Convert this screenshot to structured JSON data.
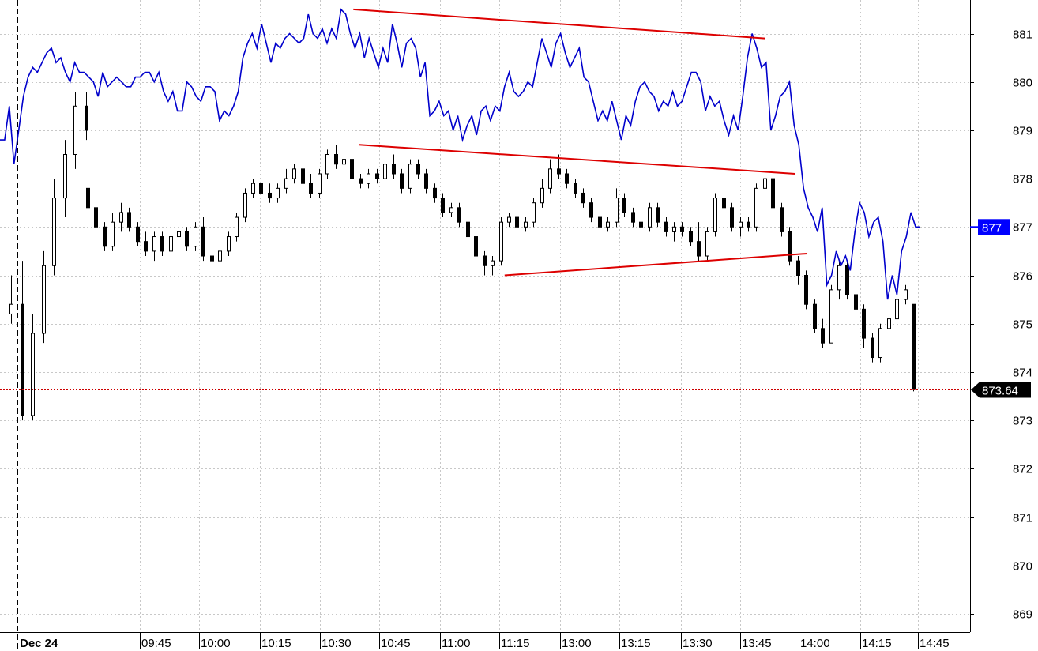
{
  "chart_data": {
    "type": "candlestick",
    "y_axis": {
      "min": 868.5,
      "max": 881.6,
      "ticks": [
        869,
        870,
        871,
        872,
        873,
        874,
        875,
        876,
        877,
        878,
        879,
        880,
        881
      ],
      "side": "right",
      "grid": true
    },
    "x_axis": {
      "date_label": "Dec 24",
      "time_labels": [
        "09:45",
        "10:00",
        "10:15",
        "10:30",
        "10:45",
        "11:00",
        "11:15",
        "13:00",
        "13:15",
        "13:30",
        "13:45",
        "14:00",
        "14:15",
        "14:45"
      ],
      "grid": true
    },
    "last_price": {
      "value": 873.64,
      "label": "873.64",
      "color": "#000000"
    },
    "line_marker": {
      "value": 877,
      "label": "877",
      "color": "#0000ff"
    },
    "series": [
      {
        "kind": "candles",
        "color": "#000000",
        "candles": [
          [
            875.2,
            876.0,
            875.0,
            875.4
          ],
          [
            875.4,
            876.3,
            873.0,
            873.1
          ],
          [
            873.1,
            875.2,
            873.0,
            874.8
          ],
          [
            874.8,
            876.5,
            874.6,
            876.2
          ],
          [
            876.2,
            878.0,
            876.0,
            877.6
          ],
          [
            877.6,
            878.8,
            877.2,
            878.5
          ],
          [
            878.5,
            879.8,
            878.2,
            879.5
          ],
          [
            879.5,
            879.8,
            878.8,
            879.0
          ],
          [
            877.8,
            877.9,
            877.3,
            877.4
          ],
          [
            877.4,
            877.6,
            876.8,
            877.0
          ],
          [
            877.0,
            877.1,
            876.5,
            876.6
          ],
          [
            876.6,
            877.3,
            876.5,
            877.1
          ],
          [
            877.1,
            877.5,
            876.9,
            877.3
          ],
          [
            877.3,
            877.4,
            876.9,
            877.0
          ],
          [
            877.0,
            877.1,
            876.6,
            876.7
          ],
          [
            876.7,
            876.9,
            876.4,
            876.5
          ],
          [
            876.5,
            876.9,
            876.3,
            876.8
          ],
          [
            876.8,
            876.9,
            876.4,
            876.5
          ],
          [
            876.5,
            876.9,
            876.4,
            876.8
          ],
          [
            876.8,
            877.0,
            876.6,
            876.9
          ],
          [
            876.9,
            877.0,
            876.5,
            876.6
          ],
          [
            876.6,
            877.1,
            876.5,
            877.0
          ],
          [
            877.0,
            877.2,
            876.3,
            876.4
          ],
          [
            876.4,
            876.6,
            876.1,
            876.3
          ],
          [
            876.3,
            876.6,
            876.2,
            876.5
          ],
          [
            876.5,
            876.9,
            876.4,
            876.8
          ],
          [
            876.8,
            877.3,
            876.7,
            877.2
          ],
          [
            877.2,
            877.8,
            877.1,
            877.7
          ],
          [
            877.7,
            878.0,
            877.6,
            877.9
          ],
          [
            877.9,
            878.0,
            877.6,
            877.7
          ],
          [
            877.7,
            877.9,
            877.5,
            877.6
          ],
          [
            877.6,
            877.9,
            877.5,
            877.8
          ],
          [
            877.8,
            878.2,
            877.7,
            878.0
          ],
          [
            878.0,
            878.3,
            877.9,
            878.2
          ],
          [
            878.2,
            878.3,
            877.8,
            877.9
          ],
          [
            877.9,
            878.1,
            877.6,
            877.7
          ],
          [
            877.7,
            878.2,
            877.6,
            878.1
          ],
          [
            878.1,
            878.6,
            878.0,
            878.5
          ],
          [
            878.5,
            878.7,
            878.2,
            878.3
          ],
          [
            878.3,
            878.5,
            878.1,
            878.4
          ],
          [
            878.4,
            878.5,
            877.9,
            878.0
          ],
          [
            878.0,
            878.1,
            877.8,
            877.9
          ],
          [
            877.9,
            878.2,
            877.8,
            878.1
          ],
          [
            878.1,
            878.2,
            877.9,
            878.0
          ],
          [
            878.0,
            878.4,
            877.9,
            878.3
          ],
          [
            878.3,
            878.5,
            878.0,
            878.1
          ],
          [
            878.1,
            878.2,
            877.7,
            877.8
          ],
          [
            877.8,
            878.4,
            877.7,
            878.3
          ],
          [
            878.3,
            878.4,
            878.0,
            878.1
          ],
          [
            878.1,
            878.2,
            877.7,
            877.8
          ],
          [
            877.8,
            877.9,
            877.5,
            877.6
          ],
          [
            877.6,
            877.7,
            877.2,
            877.3
          ],
          [
            877.3,
            877.5,
            877.2,
            877.4
          ],
          [
            877.4,
            877.5,
            877.0,
            877.1
          ],
          [
            877.1,
            877.2,
            876.7,
            876.8
          ],
          [
            876.8,
            876.9,
            876.3,
            876.4
          ],
          [
            876.4,
            876.5,
            876.0,
            876.2
          ],
          [
            876.2,
            876.4,
            876.0,
            876.3
          ],
          [
            876.3,
            877.2,
            876.2,
            877.1
          ],
          [
            877.1,
            877.3,
            877.0,
            877.2
          ],
          [
            877.2,
            877.3,
            876.9,
            877.0
          ],
          [
            877.0,
            877.2,
            876.9,
            877.1
          ],
          [
            877.1,
            877.6,
            877.0,
            877.5
          ],
          [
            877.5,
            878.0,
            877.4,
            877.8
          ],
          [
            877.8,
            878.4,
            877.7,
            878.2
          ],
          [
            878.2,
            878.5,
            878.0,
            878.1
          ],
          [
            878.1,
            878.2,
            877.8,
            877.9
          ],
          [
            877.9,
            878.0,
            877.6,
            877.7
          ],
          [
            877.7,
            877.8,
            877.4,
            877.5
          ],
          [
            877.5,
            877.6,
            877.1,
            877.2
          ],
          [
            877.2,
            877.3,
            876.9,
            877.0
          ],
          [
            877.0,
            877.2,
            876.9,
            877.1
          ],
          [
            877.1,
            877.8,
            877.0,
            877.6
          ],
          [
            877.6,
            877.7,
            877.2,
            877.3
          ],
          [
            877.3,
            877.4,
            877.0,
            877.1
          ],
          [
            877.1,
            877.2,
            876.9,
            877.0
          ],
          [
            877.0,
            877.5,
            876.9,
            877.4
          ],
          [
            877.4,
            877.5,
            877.0,
            877.1
          ],
          [
            877.1,
            877.2,
            876.8,
            876.9
          ],
          [
            876.9,
            877.1,
            876.7,
            877.0
          ],
          [
            877.0,
            877.1,
            876.8,
            876.9
          ],
          [
            876.9,
            877.0,
            876.6,
            876.7
          ],
          [
            876.7,
            877.1,
            876.3,
            876.4
          ],
          [
            876.4,
            877.0,
            876.3,
            876.9
          ],
          [
            876.9,
            877.7,
            876.8,
            877.6
          ],
          [
            877.6,
            877.8,
            877.3,
            877.4
          ],
          [
            877.4,
            877.5,
            876.9,
            877.0
          ],
          [
            877.0,
            877.2,
            876.8,
            877.1
          ],
          [
            877.1,
            877.2,
            876.9,
            877.0
          ],
          [
            877.0,
            877.9,
            876.9,
            877.8
          ],
          [
            877.8,
            878.1,
            877.7,
            878.0
          ],
          [
            878.0,
            878.1,
            877.3,
            877.4
          ],
          [
            877.4,
            877.5,
            876.8,
            876.9
          ],
          [
            876.9,
            877.0,
            876.2,
            876.3
          ],
          [
            876.3,
            876.4,
            875.8,
            876.0
          ],
          [
            876.0,
            876.1,
            875.3,
            875.4
          ],
          [
            875.4,
            875.5,
            874.8,
            874.9
          ],
          [
            874.9,
            875.1,
            874.5,
            874.6
          ],
          [
            874.6,
            875.8,
            874.6,
            875.7
          ],
          [
            875.7,
            876.3,
            875.5,
            876.2
          ],
          [
            876.2,
            876.3,
            875.5,
            875.6
          ],
          [
            875.6,
            875.7,
            875.2,
            875.3
          ],
          [
            875.3,
            875.4,
            874.5,
            874.7
          ],
          [
            874.7,
            874.8,
            874.2,
            874.3
          ],
          [
            874.3,
            875.0,
            874.2,
            874.9
          ],
          [
            874.9,
            875.2,
            874.8,
            875.1
          ],
          [
            875.1,
            875.6,
            875.0,
            875.5
          ],
          [
            875.5,
            875.8,
            875.4,
            875.7
          ],
          [
            875.4,
            875.4,
            873.6,
            873.64
          ]
        ]
      },
      {
        "kind": "line",
        "color": "#0000cc",
        "values": [
          878.8,
          878.8,
          879.5,
          878.3,
          879.0,
          879.7,
          880.1,
          880.3,
          880.2,
          880.4,
          880.6,
          880.7,
          880.4,
          880.5,
          880.2,
          880.0,
          880.4,
          880.2,
          880.2,
          880.1,
          880.0,
          879.7,
          880.2,
          879.9,
          880.0,
          880.1,
          880.0,
          879.9,
          879.9,
          880.1,
          880.1,
          880.2,
          880.2,
          880.0,
          880.2,
          879.8,
          879.6,
          879.8,
          879.4,
          879.4,
          880.0,
          879.9,
          879.7,
          879.6,
          879.9,
          879.9,
          879.8,
          879.2,
          879.4,
          879.3,
          879.5,
          879.8,
          880.5,
          880.8,
          881.0,
          880.7,
          881.2,
          880.8,
          880.4,
          880.8,
          880.7,
          880.9,
          881.0,
          880.9,
          880.8,
          880.9,
          881.4,
          881.0,
          880.9,
          881.1,
          880.8,
          881.1,
          880.9,
          881.5,
          881.4,
          881.0,
          880.7,
          881.0,
          880.5,
          880.9,
          880.6,
          880.3,
          880.7,
          880.4,
          881.2,
          880.8,
          880.3,
          880.8,
          880.9,
          880.7,
          880.1,
          880.4,
          879.3,
          879.4,
          879.6,
          879.3,
          879.4,
          879.0,
          879.3,
          878.8,
          879.1,
          879.3,
          878.9,
          879.4,
          879.5,
          879.2,
          879.5,
          879.4,
          879.9,
          880.2,
          879.8,
          879.7,
          879.8,
          880.0,
          879.9,
          880.4,
          880.9,
          880.6,
          880.3,
          880.8,
          881.0,
          880.6,
          880.3,
          880.5,
          880.7,
          880.1,
          880.0,
          879.6,
          879.2,
          879.4,
          879.2,
          879.6,
          879.2,
          878.8,
          879.3,
          879.1,
          879.6,
          879.9,
          880.0,
          879.8,
          879.7,
          879.4,
          879.6,
          879.5,
          879.8,
          879.5,
          879.6,
          879.9,
          880.2,
          880.2,
          880.0,
          879.4,
          879.7,
          879.5,
          879.6,
          879.2,
          878.9,
          879.3,
          879.0,
          879.7,
          880.5,
          881.0,
          880.7,
          880.3,
          880.4,
          879.0,
          879.3,
          879.7,
          879.8,
          880.0,
          879.1,
          878.7,
          877.8,
          877.4,
          877.2,
          876.9,
          877.4,
          875.8,
          876.0,
          876.5,
          876.2,
          876.4,
          876.1,
          876.9,
          877.5,
          877.3,
          876.8,
          877.1,
          877.2,
          876.7,
          875.5,
          876.0,
          875.6,
          876.5,
          876.8,
          877.3,
          877.0,
          877.0
        ]
      }
    ],
    "trendlines": [
      {
        "color": "#dd0000",
        "from": {
          "bar": 58,
          "value": 881.5
        },
        "to": {
          "bar": 126,
          "value": 880.9
        }
      },
      {
        "color": "#dd0000",
        "from": {
          "bar": 59,
          "value": 878.7
        },
        "to": {
          "bar": 131,
          "value": 878.1
        }
      },
      {
        "color": "#dd0000",
        "from": {
          "bar": 83,
          "value": 876.0
        },
        "to": {
          "bar": 133,
          "value": 876.45
        }
      }
    ]
  }
}
